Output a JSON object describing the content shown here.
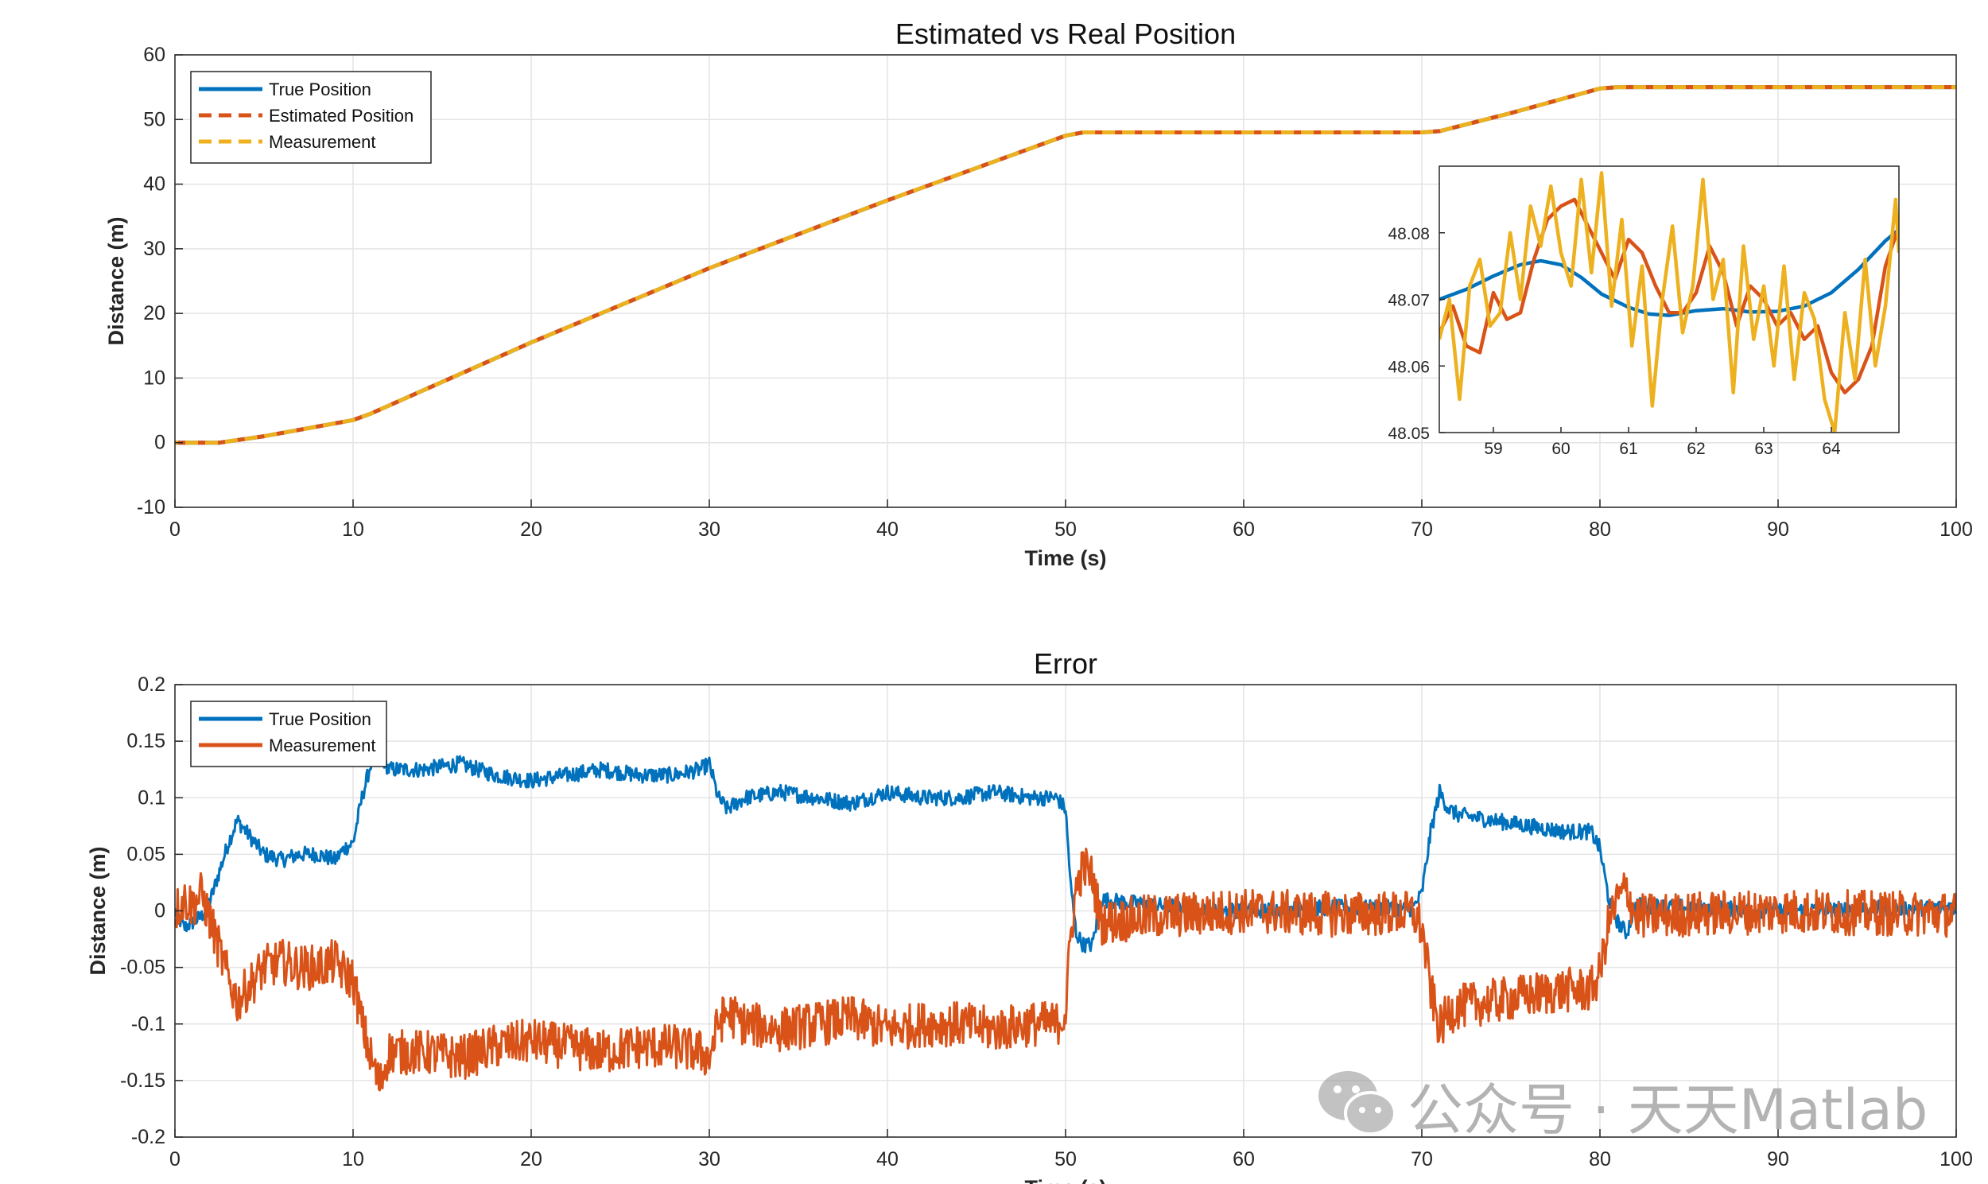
{
  "chart_data": [
    {
      "type": "line",
      "title": "Estimated vs Real Position",
      "xlabel": "Time (s)",
      "ylabel": "Distance (m)",
      "xlim": [
        0,
        100
      ],
      "ylim": [
        -10,
        60
      ],
      "xticks": [
        "0",
        "10",
        "20",
        "30",
        "40",
        "50",
        "60",
        "70",
        "80",
        "90",
        "100"
      ],
      "yticks": [
        "-10",
        "0",
        "10",
        "20",
        "30",
        "40",
        "50",
        "60"
      ],
      "grid": true,
      "legend_position": "top-left",
      "series": [
        {
          "name": "True Position",
          "color": "#0072BD",
          "style": "solid",
          "x": [
            0,
            2.5,
            5,
            10,
            11,
            20,
            30,
            40,
            50,
            51,
            70,
            71,
            75,
            80,
            81,
            100
          ],
          "values": [
            0,
            0,
            1,
            3.5,
            4.5,
            15.5,
            27,
            37.5,
            47.5,
            48,
            48,
            48.2,
            51,
            54.8,
            55,
            55
          ]
        },
        {
          "name": "Estimated Position",
          "color": "#D95319",
          "style": "dashed",
          "x": [
            0,
            2.5,
            5,
            10,
            11,
            20,
            30,
            40,
            50,
            51,
            70,
            71,
            75,
            80,
            81,
            100
          ],
          "values": [
            0,
            0,
            1,
            3.5,
            4.5,
            15.5,
            27,
            37.5,
            47.5,
            48,
            48,
            48.2,
            51,
            54.8,
            55,
            55
          ]
        },
        {
          "name": "Measurement",
          "color": "#EDB120",
          "style": "dashed",
          "x": [
            0,
            2.5,
            5,
            10,
            11,
            20,
            30,
            40,
            50,
            51,
            70,
            71,
            75,
            80,
            81,
            100
          ],
          "values": [
            0,
            0,
            1,
            3.5,
            4.5,
            15.5,
            27,
            37.5,
            47.5,
            48,
            48,
            48.2,
            51,
            54.8,
            55,
            55
          ]
        }
      ]
    },
    {
      "type": "line",
      "title": "",
      "xlim": [
        58.2,
        65
      ],
      "ylim": [
        48.05,
        48.09
      ],
      "xticks": [
        "59",
        "60",
        "61",
        "62",
        "63",
        "64"
      ],
      "yticks": [
        "48.05",
        "48.06",
        "48.07",
        "48.08"
      ],
      "series": [
        {
          "color": "#0072BD",
          "x": [
            58.2,
            58.6,
            59.0,
            59.4,
            59.7,
            60.0,
            60.3,
            60.6,
            61.0,
            61.3,
            61.6,
            62.0,
            62.4,
            62.8,
            63.2,
            63.6,
            64.0,
            64.4,
            64.8,
            65.0
          ],
          "values": [
            48.07,
            48.0715,
            48.0735,
            48.0752,
            48.0758,
            48.0752,
            48.0733,
            48.0708,
            48.0688,
            48.0678,
            48.0676,
            48.0683,
            48.0686,
            48.0681,
            48.0682,
            48.069,
            48.071,
            48.0745,
            48.0788,
            48.0805
          ]
        },
        {
          "color": "#D95319",
          "x": [
            58.2,
            58.4,
            58.6,
            58.8,
            59.0,
            59.2,
            59.4,
            59.6,
            59.8,
            60.0,
            60.2,
            60.4,
            60.6,
            60.8,
            61.0,
            61.2,
            61.4,
            61.6,
            61.8,
            62.0,
            62.2,
            62.4,
            62.6,
            62.8,
            63.0,
            63.2,
            63.4,
            63.6,
            63.8,
            64.0,
            64.2,
            64.4,
            64.6,
            64.8,
            65.0
          ],
          "values": [
            48.065,
            48.069,
            48.063,
            48.062,
            48.071,
            48.067,
            48.068,
            48.076,
            48.082,
            48.084,
            48.085,
            48.081,
            48.077,
            48.073,
            48.079,
            48.077,
            48.072,
            48.068,
            48.068,
            48.071,
            48.078,
            48.074,
            48.066,
            48.072,
            48.07,
            48.066,
            48.068,
            48.064,
            48.066,
            48.059,
            48.056,
            48.058,
            48.063,
            48.075,
            48.081
          ]
        },
        {
          "color": "#EDB120",
          "x": [
            58.2,
            58.35,
            58.5,
            58.65,
            58.8,
            58.95,
            59.1,
            59.25,
            59.4,
            59.55,
            59.7,
            59.85,
            60.0,
            60.15,
            60.3,
            60.45,
            60.6,
            60.75,
            60.9,
            61.05,
            61.2,
            61.35,
            61.5,
            61.65,
            61.8,
            61.95,
            62.1,
            62.25,
            62.4,
            62.55,
            62.7,
            62.85,
            63.0,
            63.15,
            63.3,
            63.45,
            63.6,
            63.75,
            63.9,
            64.05,
            64.2,
            64.35,
            64.5,
            64.65,
            64.8,
            64.95,
            65.0
          ],
          "values": [
            48.064,
            48.07,
            48.055,
            48.072,
            48.076,
            48.066,
            48.068,
            48.08,
            48.07,
            48.084,
            48.078,
            48.087,
            48.077,
            48.072,
            48.088,
            48.074,
            48.089,
            48.069,
            48.082,
            48.063,
            48.075,
            48.054,
            48.07,
            48.081,
            48.065,
            48.072,
            48.088,
            48.07,
            48.076,
            48.056,
            48.078,
            48.064,
            48.072,
            48.06,
            48.075,
            48.058,
            48.071,
            48.067,
            48.055,
            48.05,
            48.068,
            48.058,
            48.076,
            48.06,
            48.069,
            48.085,
            48.077
          ]
        }
      ]
    },
    {
      "type": "line",
      "title": "Error",
      "xlabel": "Time (s)",
      "ylabel": "Distance (m)",
      "xlim": [
        0,
        100
      ],
      "ylim": [
        -0.2,
        0.2
      ],
      "xticks": [
        "0",
        "10",
        "20",
        "30",
        "40",
        "50",
        "60",
        "70",
        "80",
        "90",
        "100"
      ],
      "yticks": [
        "-0.2",
        "-0.15",
        "-0.1",
        "-0.05",
        "0",
        "0.05",
        "0.1",
        "0.15",
        "0.2"
      ],
      "grid": true,
      "legend_position": "top-left",
      "series": [
        {
          "name": "True Position",
          "color": "#0072BD",
          "x": [
            0,
            0.5,
            1,
            1.5,
            2,
            2.5,
            3,
            3.5,
            4,
            5,
            6,
            7,
            8,
            9,
            9.5,
            10,
            10.5,
            11,
            11.5,
            12,
            14,
            16,
            18,
            20,
            22,
            24,
            26,
            28,
            29.5,
            30,
            30.5,
            31,
            32,
            34,
            36,
            38,
            40,
            42,
            44,
            46,
            48,
            49.5,
            50,
            50.3,
            50.6,
            51,
            51.5,
            52,
            55,
            60,
            65,
            69.5,
            70,
            70.5,
            71,
            71.5,
            72,
            74,
            76,
            78,
            79.5,
            80,
            80.5,
            81,
            81.5,
            82,
            85,
            90,
            95,
            100
          ],
          "values": [
            0,
            -0.015,
            -0.01,
            -0.005,
            0.01,
            0.035,
            0.06,
            0.08,
            0.07,
            0.05,
            0.045,
            0.05,
            0.05,
            0.045,
            0.055,
            0.06,
            0.1,
            0.13,
            0.14,
            0.125,
            0.125,
            0.13,
            0.12,
            0.115,
            0.12,
            0.125,
            0.12,
            0.12,
            0.125,
            0.13,
            0.1,
            0.09,
            0.1,
            0.105,
            0.1,
            0.095,
            0.105,
            0.1,
            0.1,
            0.105,
            0.1,
            0.1,
            0.09,
            0.02,
            -0.02,
            -0.03,
            -0.03,
            0.01,
            0.005,
            0,
            0.003,
            0.002,
            0.015,
            0.07,
            0.105,
            0.09,
            0.085,
            0.08,
            0.075,
            0.07,
            0.07,
            0.055,
            0.01,
            -0.01,
            -0.02,
            0.005,
            0.003,
            0,
            0.002,
            0.003
          ]
        },
        {
          "name": "Measurement",
          "color": "#D95319",
          "x": [
            0,
            0.5,
            1,
            1.5,
            2,
            2.5,
            3,
            3.5,
            4,
            5,
            6,
            7,
            8,
            9,
            9.5,
            10,
            10.5,
            11,
            11.5,
            12,
            14,
            16,
            18,
            20,
            22,
            24,
            26,
            28,
            29.5,
            30,
            30.5,
            31,
            32,
            34,
            36,
            38,
            40,
            42,
            44,
            46,
            48,
            49.5,
            50,
            50.3,
            50.6,
            51,
            51.5,
            52,
            55,
            60,
            65,
            69.5,
            70,
            70.5,
            71,
            71.5,
            72,
            74,
            76,
            78,
            79.5,
            80,
            80.5,
            81,
            81.5,
            82,
            85,
            90,
            95,
            100
          ],
          "values": [
            0,
            0.01,
            0.005,
            0.015,
            -0.01,
            -0.035,
            -0.06,
            -0.08,
            -0.07,
            -0.05,
            -0.045,
            -0.05,
            -0.05,
            -0.045,
            -0.055,
            -0.06,
            -0.1,
            -0.13,
            -0.155,
            -0.125,
            -0.125,
            -0.13,
            -0.12,
            -0.115,
            -0.12,
            -0.125,
            -0.12,
            -0.12,
            -0.125,
            -0.13,
            -0.1,
            -0.09,
            -0.1,
            -0.105,
            -0.1,
            -0.095,
            -0.105,
            -0.1,
            -0.1,
            -0.105,
            -0.1,
            -0.1,
            -0.09,
            -0.02,
            0.02,
            0.04,
            0.03,
            -0.01,
            -0.005,
            0,
            -0.003,
            -0.002,
            -0.015,
            -0.07,
            -0.105,
            -0.09,
            -0.085,
            -0.08,
            -0.075,
            -0.07,
            -0.07,
            -0.055,
            -0.01,
            0.01,
            0.02,
            -0.005,
            -0.003,
            0,
            -0.002,
            -0.003
          ]
        }
      ]
    }
  ],
  "watermark": {
    "text": "公众号 · 天天Matlab",
    "icon": "wechat-icon"
  }
}
